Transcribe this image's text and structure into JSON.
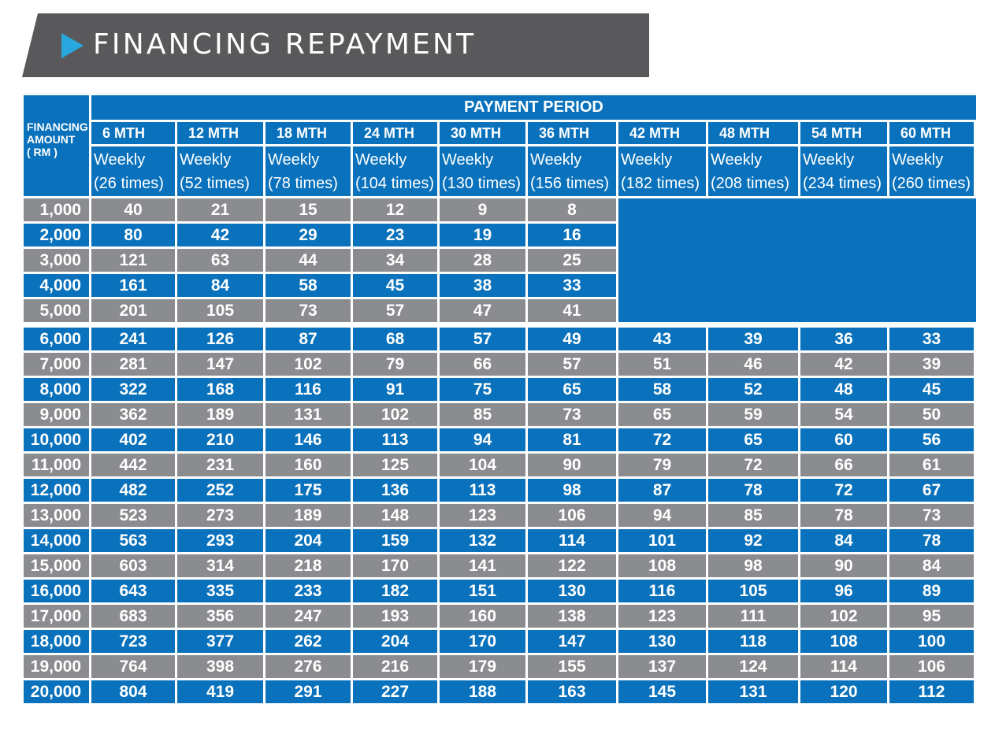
{
  "banner": {
    "title": "FINANCING REPAYMENT",
    "arrow_icon": "triangle-play-icon"
  },
  "table": {
    "amount_header": [
      "FINANCING",
      "AMOUNT",
      "( RM )"
    ],
    "period_header": "PAYMENT PERIOD",
    "months": [
      "6 MTH",
      "12 MTH",
      "18 MTH",
      "24 MTH",
      "30 MTH",
      "36 MTH",
      "42 MTH",
      "48 MTH",
      "54 MTH",
      "60 MTH"
    ],
    "frequency": [
      "Weekly",
      "Weekly",
      "Weekly",
      "Weekly",
      "Weekly",
      "Weekly",
      "Weekly",
      "Weekly",
      "Weekly",
      "Weekly"
    ],
    "times": [
      "(26 times)",
      "(52 times)",
      "(78 times)",
      "(104 times)",
      "(130 times)",
      "(156 times)",
      "(182 times)",
      "(208 times)",
      "(234 times)",
      "(260 times)"
    ],
    "rows": [
      {
        "amount": "1,000",
        "values": [
          "40",
          "21",
          "15",
          "12",
          "9",
          "8"
        ]
      },
      {
        "amount": "2,000",
        "values": [
          "80",
          "42",
          "29",
          "23",
          "19",
          "16"
        ]
      },
      {
        "amount": "3,000",
        "values": [
          "121",
          "63",
          "44",
          "34",
          "28",
          "25"
        ]
      },
      {
        "amount": "4,000",
        "values": [
          "161",
          "84",
          "58",
          "45",
          "38",
          "33"
        ]
      },
      {
        "amount": "5,000",
        "values": [
          "201",
          "105",
          "73",
          "57",
          "47",
          "41"
        ]
      },
      {
        "amount": "6,000",
        "values": [
          "241",
          "126",
          "87",
          "68",
          "57",
          "49",
          "43",
          "39",
          "36",
          "33"
        ]
      },
      {
        "amount": "7,000",
        "values": [
          "281",
          "147",
          "102",
          "79",
          "66",
          "57",
          "51",
          "46",
          "42",
          "39"
        ]
      },
      {
        "amount": "8,000",
        "values": [
          "322",
          "168",
          "116",
          "91",
          "75",
          "65",
          "58",
          "52",
          "48",
          "45"
        ]
      },
      {
        "amount": "9,000",
        "values": [
          "362",
          "189",
          "131",
          "102",
          "85",
          "73",
          "65",
          "59",
          "54",
          "50"
        ]
      },
      {
        "amount": "10,000",
        "values": [
          "402",
          "210",
          "146",
          "113",
          "94",
          "81",
          "72",
          "65",
          "60",
          "56"
        ]
      },
      {
        "amount": "11,000",
        "values": [
          "442",
          "231",
          "160",
          "125",
          "104",
          "90",
          "79",
          "72",
          "66",
          "61"
        ]
      },
      {
        "amount": "12,000",
        "values": [
          "482",
          "252",
          "175",
          "136",
          "113",
          "98",
          "87",
          "78",
          "72",
          "67"
        ]
      },
      {
        "amount": "13,000",
        "values": [
          "523",
          "273",
          "189",
          "148",
          "123",
          "106",
          "94",
          "85",
          "78",
          "73"
        ]
      },
      {
        "amount": "14,000",
        "values": [
          "563",
          "293",
          "204",
          "159",
          "132",
          "114",
          "101",
          "92",
          "84",
          "78"
        ]
      },
      {
        "amount": "15,000",
        "values": [
          "603",
          "314",
          "218",
          "170",
          "141",
          "122",
          "108",
          "98",
          "90",
          "84"
        ]
      },
      {
        "amount": "16,000",
        "values": [
          "643",
          "335",
          "233",
          "182",
          "151",
          "130",
          "116",
          "105",
          "96",
          "89"
        ]
      },
      {
        "amount": "17,000",
        "values": [
          "683",
          "356",
          "247",
          "193",
          "160",
          "138",
          "123",
          "111",
          "102",
          "95"
        ]
      },
      {
        "amount": "18,000",
        "values": [
          "723",
          "377",
          "262",
          "204",
          "170",
          "147",
          "130",
          "118",
          "108",
          "100"
        ]
      },
      {
        "amount": "19,000",
        "values": [
          "764",
          "398",
          "276",
          "216",
          "179",
          "155",
          "137",
          "124",
          "114",
          "106"
        ]
      },
      {
        "amount": "20,000",
        "values": [
          "804",
          "419",
          "291",
          "227",
          "188",
          "163",
          "145",
          "131",
          "120",
          "112"
        ]
      }
    ],
    "colors": {
      "blue": "#0a72bc",
      "grey": "#8b8c8f",
      "banner": "#59595b",
      "arrow": "#29a8df"
    }
  }
}
